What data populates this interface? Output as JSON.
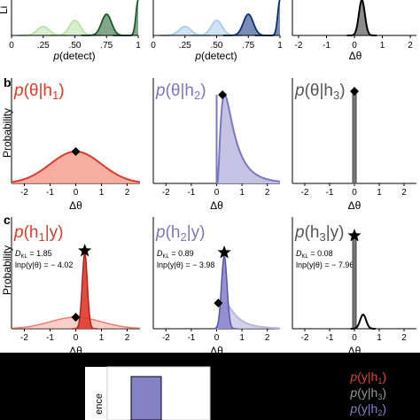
{
  "colors": {
    "green_dark": "#1a5c2a",
    "green_light": "#b7e2a8",
    "blue_dark": "#0d2f7a",
    "blue_light": "#a9cde6",
    "red": "#e03a2a",
    "red_fill": "#f4a090",
    "purple": "#7b77c0",
    "purple_fill": "#c2bfe2",
    "gray": "#666666",
    "gray_fill": "#8c8c8c",
    "black": "#000000"
  },
  "row_a": {
    "ylabel_fragment": "Li",
    "panel1": {
      "xlabel": "p(detect)",
      "ticks": [
        "0",
        ".25",
        ".50",
        ".75",
        "1"
      ]
    },
    "panel2": {
      "xlabel": "p(detect)",
      "ticks": [
        "0",
        ".25",
        ".50",
        ".75",
        "1"
      ]
    },
    "panel3": {
      "xlabel": "Δθ",
      "ticks": [
        "-2",
        "-1",
        "0",
        "1",
        "2"
      ]
    }
  },
  "row_b": {
    "label": "b",
    "ylabel": "Probability",
    "panels": [
      {
        "title_p": "p",
        "title_body": "(θ|h",
        "title_sub": "1",
        "title_end": ")",
        "xlabel": "Δθ"
      },
      {
        "title_p": "p",
        "title_body": "(θ|h",
        "title_sub": "2",
        "title_end": ")",
        "xlabel": "Δθ"
      },
      {
        "title_p": "p",
        "title_body": "(θ|h",
        "title_sub": "3",
        "title_end": ")",
        "xlabel": "Δθ"
      }
    ],
    "ticks": [
      "-2",
      "-1",
      "0",
      "1",
      "2"
    ]
  },
  "row_c": {
    "label": "c",
    "ylabel": "Probability",
    "panels": [
      {
        "title_p": "p",
        "title_body": "(h",
        "title_sub": "1",
        "title_end": "|y)",
        "xlabel": "Δθ",
        "dkl": "D",
        "dkl_sub": "KL",
        "dkl_val": " = 1.85",
        "lnp": "lnp(y|θ) = − 4.02"
      },
      {
        "title_p": "p",
        "title_body": "(h",
        "title_sub": "2",
        "title_end": "|y)",
        "xlabel": "Δθ",
        "dkl": "D",
        "dkl_sub": "KL",
        "dkl_val": " = 0.89",
        "lnp": "lnp(y|θ) = − 3.98"
      },
      {
        "title_p": "p",
        "title_body": "(h",
        "title_sub": "3",
        "title_end": "|y)",
        "xlabel": "Δθ",
        "dkl": "D",
        "dkl_sub": "KL",
        "dkl_val": " = 0.08",
        "lnp": "lnp(y|θ) = − 7.96"
      }
    ],
    "ticks": [
      "-2",
      "-1",
      "0",
      "1",
      "2"
    ]
  },
  "row_d": {
    "ylabel_fragment": "ence",
    "legend": [
      "p(y|h1)",
      "p(y|h3)",
      "p(y|h2)"
    ],
    "legend_parts": [
      {
        "p": "p",
        "body": "(y|h",
        "sub": "1",
        "end": ")"
      },
      {
        "p": "p",
        "body": "(y|h",
        "sub": "3",
        "end": ")"
      },
      {
        "p": "p",
        "body": "(y|h",
        "sub": "2",
        "end": ")"
      }
    ]
  },
  "chart_data": [
    {
      "type": "area",
      "title": "",
      "xlabel": "p(detect)",
      "x_range": [
        0,
        1
      ],
      "series": [
        {
          "values_peak_x": [
            0.25,
            0.5,
            0.75,
            1.0
          ]
        }
      ]
    },
    {
      "type": "area",
      "title": "",
      "xlabel": "p(detect)",
      "x_range": [
        0,
        1
      ],
      "series": [
        {
          "values_peak_x": [
            0.25,
            0.5,
            0.75,
            1.0
          ]
        }
      ]
    },
    {
      "type": "area",
      "title": "",
      "xlabel": "Δθ",
      "x_range": [
        -2.5,
        2.5
      ],
      "series": [
        {
          "peak_x": 0.3
        }
      ]
    },
    {
      "type": "area",
      "title": "p(θ|h1)",
      "xlabel": "Δθ",
      "x_range": [
        -2.5,
        2.5
      ],
      "series": [
        {
          "shape": "gaussian",
          "mean": 0,
          "sd": 1.0,
          "marker_x": 0
        }
      ]
    },
    {
      "type": "area",
      "title": "p(θ|h2)",
      "xlabel": "Δθ",
      "x_range": [
        -2.5,
        2.5
      ],
      "series": [
        {
          "shape": "lognormal",
          "start": 0,
          "mode": 0.3,
          "marker_x": 0.3
        }
      ]
    },
    {
      "type": "area",
      "title": "p(θ|h3)",
      "xlabel": "Δθ",
      "x_range": [
        -2.5,
        2.5
      ],
      "series": [
        {
          "shape": "spike",
          "x": 0,
          "marker_x": 0
        }
      ]
    },
    {
      "type": "area",
      "title": "p(h1|y)",
      "xlabel": "Δθ",
      "x_range": [
        -2.5,
        2.5
      ],
      "annotations": [
        "DKL = 1.85",
        "lnp(y|θ) = − 4.02"
      ],
      "series": [
        {
          "shape": "posterior",
          "peak_x": 0.35,
          "star_x": 0.35,
          "diamond_x": 0
        }
      ]
    },
    {
      "type": "area",
      "title": "p(h2|y)",
      "xlabel": "Δθ",
      "x_range": [
        -2.5,
        2.5
      ],
      "annotations": [
        "DKL = 0.89",
        "lnp(y|θ) = − 3.98"
      ],
      "series": [
        {
          "shape": "posterior",
          "peak_x": 0.3,
          "star_x": 0.3,
          "diamond_x": 0.1
        }
      ]
    },
    {
      "type": "area",
      "title": "p(h3|y)",
      "xlabel": "Δθ",
      "x_range": [
        -2.5,
        2.5
      ],
      "annotations": [
        "DKL = 0.08",
        "lnp(y|θ) = − 7.96"
      ],
      "series": [
        {
          "shape": "spike",
          "x": 0,
          "star_x": 0,
          "likelihood_peak_x": 0.35
        }
      ]
    },
    {
      "type": "bar",
      "categories": [
        ""
      ],
      "values": [
        0.65
      ],
      "ylabel": "ence"
    }
  ]
}
